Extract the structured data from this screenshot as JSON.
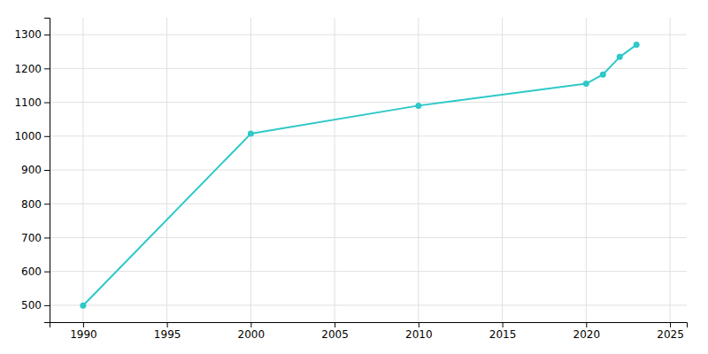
{
  "chart_data": {
    "type": "line",
    "x": [
      1990,
      2000,
      2010,
      2020,
      2021,
      2022,
      2023
    ],
    "values": [
      499,
      1007,
      1090,
      1155,
      1182,
      1234,
      1270
    ],
    "color": "#2ec8c8",
    "marker": "circle",
    "xlim": [
      1988,
      2026
    ],
    "ylim": [
      450,
      1350
    ],
    "xticks": [
      1990,
      1995,
      2000,
      2005,
      2010,
      2015,
      2020,
      2025
    ],
    "yticks": [
      500,
      600,
      700,
      800,
      900,
      1000,
      1100,
      1200,
      1300
    ],
    "grid": true
  }
}
